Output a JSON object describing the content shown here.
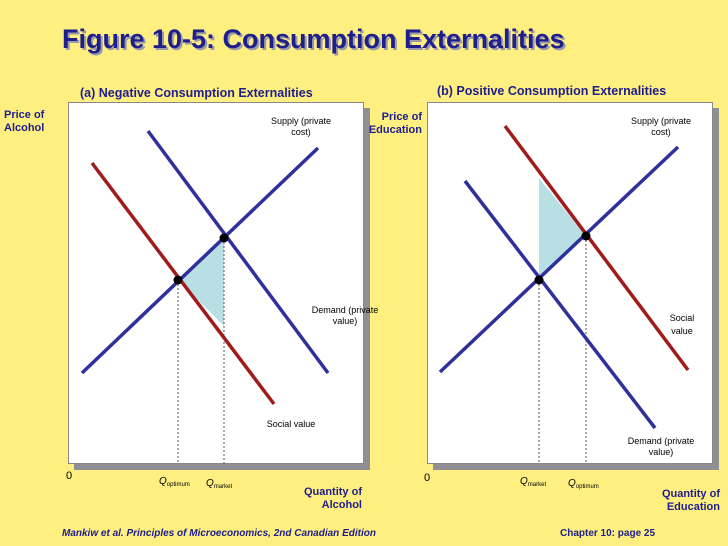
{
  "title": "Figure 10-5: Consumption Externalities",
  "panel_a": {
    "title": "(a) Negative Consumption Externalities",
    "y_label_1": "Price of",
    "y_label_2": "Alcohol",
    "x_label_1": "Quantity of",
    "x_label_2": "Alcohol",
    "origin": "0",
    "supply_label_1": "Supply (private",
    "supply_label_2": "cost)",
    "demand_label_1": "Demand (private",
    "demand_label_2": "value)",
    "social_label": "Social value",
    "q1_main": "Q",
    "q1_sub": "optimum",
    "q2_main": "Q",
    "q2_sub": "market"
  },
  "panel_b": {
    "title": "(b) Positive Consumption Externalities",
    "y_label_1": "Price of",
    "y_label_2": "Education",
    "x_label_1": "Quantity of",
    "x_label_2": "Education",
    "origin": "0",
    "supply_label_1": "Supply (private",
    "supply_label_2": "cost)",
    "social_label_1": "Social",
    "social_label_2": "value",
    "demand_label_1": "Demand (private",
    "demand_label_2": "value)",
    "q1_main": "Q",
    "q1_sub": "market",
    "q2_main": "Q",
    "q2_sub": "optimum"
  },
  "footer": {
    "left": "Mankiw et al. Principles of Microeconomics, 2nd Canadian Edition",
    "right": "Chapter 10: page 25"
  },
  "colors": {
    "supply_demand": "#30309c",
    "social": "#a01c1c",
    "deadweight": "#b8e0e4",
    "text": "#1e1e8c"
  }
}
